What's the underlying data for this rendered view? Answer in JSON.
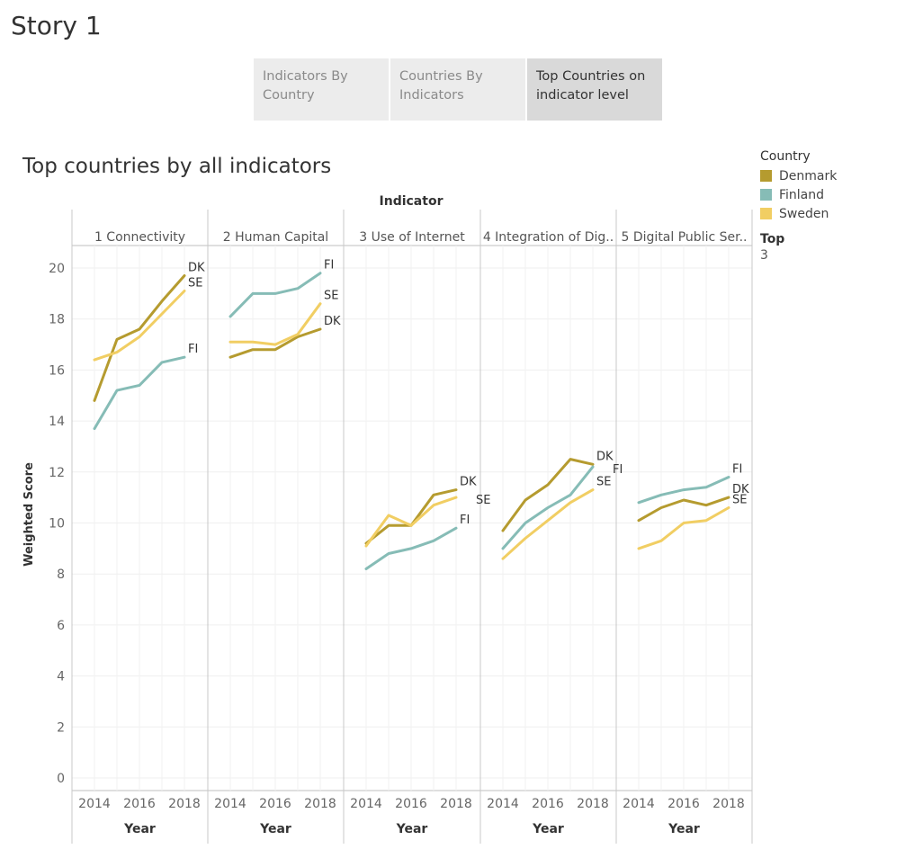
{
  "story": {
    "title": "Story 1",
    "tabs": [
      {
        "label": "Indicators By Country"
      },
      {
        "label": "Countries By Indicators"
      },
      {
        "label": "Top Countries on indicator level"
      }
    ]
  },
  "sheet": {
    "title": "Top countries by all indicators"
  },
  "legend": {
    "title": "Country",
    "items": [
      {
        "name": "Denmark",
        "color": "#b59b2f"
      },
      {
        "name": "Finland",
        "color": "#86bcb6"
      },
      {
        "name": "Sweden",
        "color": "#f1ce63"
      }
    ]
  },
  "filter": {
    "title": "Top",
    "value": "3"
  },
  "chart_data": {
    "type": "line",
    "column_header": "Indicator",
    "ylabel": "Weighted Score",
    "xlabel": "Year",
    "ylim": [
      0,
      20
    ],
    "yticks": [
      0,
      2,
      4,
      6,
      8,
      10,
      12,
      14,
      16,
      18,
      20
    ],
    "x": [
      2014,
      2015,
      2016,
      2017,
      2018
    ],
    "xticks": [
      2014,
      2016,
      2018
    ],
    "panels": [
      {
        "indicator": "1 Connectivity",
        "series": [
          {
            "name": "Denmark",
            "label": "DK",
            "values": [
              14.8,
              17.2,
              17.6,
              18.7,
              19.7
            ]
          },
          {
            "name": "Finland",
            "label": "FI",
            "values": [
              13.7,
              15.2,
              15.4,
              16.3,
              16.5
            ]
          },
          {
            "name": "Sweden",
            "label": "SE",
            "values": [
              16.4,
              16.7,
              17.3,
              18.2,
              19.1
            ]
          }
        ]
      },
      {
        "indicator": "2 Human Capital",
        "series": [
          {
            "name": "Denmark",
            "label": "DK",
            "values": [
              16.5,
              16.8,
              16.8,
              17.3,
              17.6
            ]
          },
          {
            "name": "Finland",
            "label": "FI",
            "values": [
              18.1,
              19.0,
              19.0,
              19.2,
              19.8
            ]
          },
          {
            "name": "Sweden",
            "label": "SE",
            "values": [
              17.1,
              17.1,
              17.0,
              17.4,
              18.6
            ]
          }
        ]
      },
      {
        "indicator": "3 Use of Internet",
        "series": [
          {
            "name": "Denmark",
            "label": "DK",
            "values": [
              9.2,
              9.9,
              9.9,
              11.1,
              11.3
            ]
          },
          {
            "name": "Finland",
            "label": "FI",
            "values": [
              8.2,
              8.8,
              9.0,
              9.3,
              9.8
            ]
          },
          {
            "name": "Sweden",
            "label": "SE",
            "values": [
              9.1,
              10.3,
              9.9,
              10.7,
              11.0
            ]
          }
        ]
      },
      {
        "indicator": "4 Integration of Dig..",
        "series": [
          {
            "name": "Denmark",
            "label": "DK",
            "values": [
              9.7,
              10.9,
              11.5,
              12.5,
              12.3
            ]
          },
          {
            "name": "Finland",
            "label": "FI",
            "values": [
              9.0,
              10.0,
              10.6,
              11.1,
              12.2
            ]
          },
          {
            "name": "Sweden",
            "label": "SE",
            "values": [
              8.6,
              9.4,
              10.1,
              10.8,
              11.3
            ]
          }
        ]
      },
      {
        "indicator": "5 Digital Public Ser..",
        "series": [
          {
            "name": "Denmark",
            "label": "DK",
            "values": [
              10.1,
              10.6,
              10.9,
              10.7,
              11.0
            ]
          },
          {
            "name": "Finland",
            "label": "FI",
            "values": [
              10.8,
              11.1,
              11.3,
              11.4,
              11.8
            ]
          },
          {
            "name": "Sweden",
            "label": "SE",
            "values": [
              9.0,
              9.3,
              10.0,
              10.1,
              10.6
            ]
          }
        ]
      }
    ]
  }
}
